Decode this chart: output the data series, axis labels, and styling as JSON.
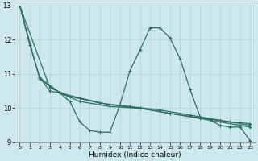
{
  "xlabel": "Humidex (Indice chaleur)",
  "bg_color": "#cce8ec",
  "grid_color": "#b8d4d8",
  "line_color": "#2e6e62",
  "xlim": [
    -0.5,
    23.5
  ],
  "ylim": [
    9,
    13
  ],
  "yticks": [
    9,
    10,
    11,
    12,
    13
  ],
  "xticks": [
    0,
    1,
    2,
    3,
    4,
    5,
    6,
    7,
    8,
    9,
    10,
    11,
    12,
    13,
    14,
    15,
    16,
    17,
    18,
    19,
    20,
    21,
    22,
    23
  ],
  "series1": [
    [
      0,
      13.0
    ],
    [
      1,
      11.85
    ],
    [
      2,
      10.9
    ],
    [
      3,
      10.5
    ],
    [
      4,
      10.45
    ],
    [
      5,
      10.2
    ],
    [
      6,
      9.6
    ],
    [
      7,
      9.35
    ],
    [
      8,
      9.3
    ],
    [
      9,
      9.3
    ],
    [
      10,
      10.1
    ],
    [
      11,
      11.1
    ],
    [
      12,
      11.7
    ],
    [
      13,
      12.35
    ],
    [
      14,
      12.35
    ],
    [
      15,
      12.05
    ],
    [
      16,
      11.45
    ],
    [
      17,
      10.55
    ],
    [
      18,
      9.75
    ],
    [
      19,
      9.65
    ],
    [
      20,
      9.5
    ],
    [
      21,
      9.45
    ],
    [
      22,
      9.45
    ],
    [
      23,
      9.05
    ]
  ],
  "series2": [
    [
      0,
      13.0
    ],
    [
      2,
      10.85
    ],
    [
      4,
      10.45
    ],
    [
      6,
      10.2
    ],
    [
      9,
      10.05
    ],
    [
      12,
      10.0
    ],
    [
      15,
      9.85
    ],
    [
      18,
      9.7
    ],
    [
      20,
      9.6
    ],
    [
      22,
      9.5
    ],
    [
      23,
      9.45
    ]
  ],
  "series3": [
    [
      0,
      13.0
    ],
    [
      3,
      10.6
    ],
    [
      5,
      10.35
    ],
    [
      8,
      10.15
    ],
    [
      11,
      10.05
    ],
    [
      14,
      9.95
    ],
    [
      17,
      9.8
    ],
    [
      20,
      9.65
    ],
    [
      23,
      9.5
    ]
  ],
  "series4": [
    [
      2,
      10.9
    ],
    [
      4,
      10.45
    ],
    [
      6,
      10.3
    ],
    [
      9,
      10.1
    ],
    [
      12,
      10.0
    ],
    [
      15,
      9.85
    ],
    [
      18,
      9.72
    ],
    [
      21,
      9.6
    ],
    [
      23,
      9.55
    ]
  ]
}
